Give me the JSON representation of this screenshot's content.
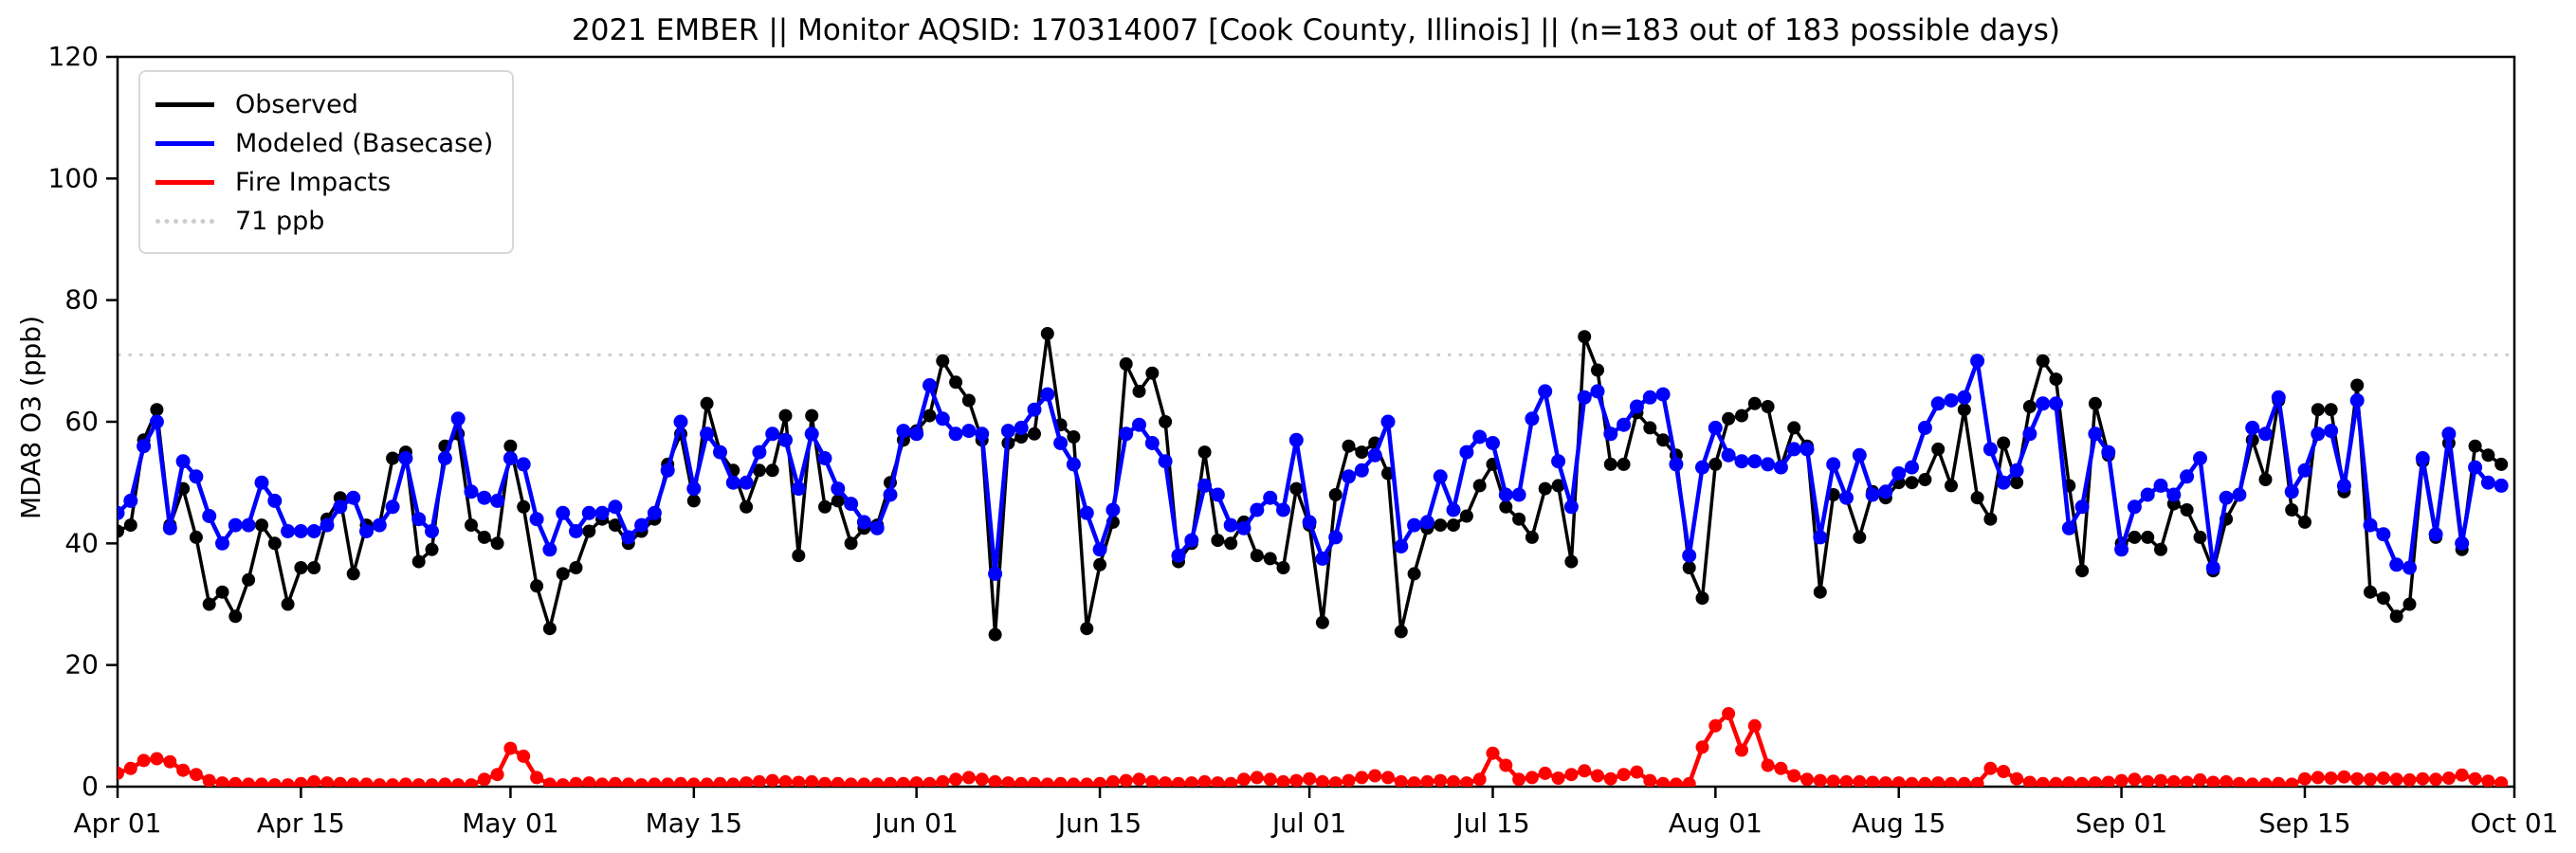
{
  "figure": {
    "background": "#ffffff"
  },
  "chart_data": {
    "type": "line",
    "title": "2021 EMBER || Monitor AQSID: 170314007 [Cook County, Illinois] || (n=183 out of 183 possible days)",
    "xlabel": "",
    "ylabel": "MDA8 O3 (ppb)",
    "ylim": [
      0,
      120
    ],
    "yticks": [
      0,
      20,
      40,
      60,
      80,
      100,
      120
    ],
    "x_span_days": 183,
    "x_start_date": "Apr 01",
    "x_end_date": "Oct 01",
    "grid": "off",
    "legend_position": "upper-left",
    "xticks": [
      {
        "label": "Apr 01",
        "day": 0
      },
      {
        "label": "Apr 15",
        "day": 14
      },
      {
        "label": "May 01",
        "day": 30
      },
      {
        "label": "May 15",
        "day": 44
      },
      {
        "label": "Jun 01",
        "day": 61
      },
      {
        "label": "Jun 15",
        "day": 75
      },
      {
        "label": "Jul 01",
        "day": 91
      },
      {
        "label": "Jul 15",
        "day": 105
      },
      {
        "label": "Aug 01",
        "day": 122
      },
      {
        "label": "Aug 15",
        "day": 136
      },
      {
        "label": "Sep 01",
        "day": 153
      },
      {
        "label": "Sep 15",
        "day": 167
      },
      {
        "label": "Oct 01",
        "day": 183
      }
    ],
    "threshold": {
      "value": 71,
      "label": "71 ppb",
      "color": "#cdcdcd"
    },
    "legend": [
      {
        "label": "Observed",
        "color": "#000000",
        "style": "solid"
      },
      {
        "label": "Modeled (Basecase)",
        "color": "#0000ff",
        "style": "solid"
      },
      {
        "label": "Fire Impacts",
        "color": "#ff0000",
        "style": "solid"
      },
      {
        "label": "71 ppb",
        "color": "#cdcdcd",
        "style": "dotted"
      }
    ],
    "series": [
      {
        "name": "Observed",
        "color": "#000000",
        "line_width": 3.5,
        "marker_radius": 7,
        "values": [
          42,
          43,
          57,
          62,
          43,
          49,
          41,
          30,
          32,
          28,
          34,
          43,
          40,
          30,
          36,
          36,
          44,
          47.5,
          35,
          43,
          43,
          54,
          55,
          37,
          39,
          56,
          58,
          43,
          41,
          40,
          56,
          46,
          33,
          26,
          35,
          36,
          42,
          44,
          43,
          40,
          42,
          44,
          53,
          58,
          47,
          63,
          55,
          52,
          46,
          52,
          52,
          61,
          38,
          61,
          46,
          47,
          40,
          42.5,
          43,
          50,
          57,
          58.5,
          61,
          70,
          66.5,
          63.5,
          57,
          25,
          56.5,
          57.5,
          58,
          74.5,
          59.5,
          57.5,
          26,
          36.5,
          43.5,
          69.5,
          65,
          68,
          60,
          37,
          40,
          55,
          40.5,
          40,
          43.5,
          38,
          37.5,
          36,
          49,
          43,
          27,
          48,
          56,
          55,
          56.5,
          51.5,
          25.5,
          35,
          42.5,
          43,
          43,
          44.5,
          49.5,
          53,
          46,
          44,
          41,
          49,
          49.5,
          37,
          74,
          68.5,
          53,
          53,
          61.5,
          59,
          57,
          54.5,
          36,
          31,
          53,
          60.5,
          61,
          63,
          62.5,
          52.5,
          59,
          56,
          32,
          48,
          47.5,
          41,
          48.5,
          47.5,
          50,
          50,
          50.5,
          55.5,
          49.5,
          62,
          47.5,
          44,
          56.5,
          50,
          62.5,
          70,
          67,
          49.5,
          35.5,
          63,
          54.5,
          40,
          41,
          41,
          39,
          46.5,
          45.5,
          41,
          35.5,
          44,
          48,
          57,
          50.5,
          63.5,
          45.5,
          43.5,
          62,
          62,
          48.5,
          66,
          32,
          31,
          28,
          30,
          53.5,
          41,
          56.5,
          39,
          56,
          54.5,
          53
        ]
      },
      {
        "name": "Modeled (Basecase)",
        "color": "#0000ff",
        "line_width": 4.5,
        "marker_radius": 7.5,
        "values": [
          45,
          47,
          56,
          60,
          42.5,
          53.5,
          51,
          44.5,
          40,
          43,
          43,
          50,
          47,
          42,
          42,
          42,
          43,
          46,
          47.5,
          42,
          43,
          46,
          54,
          44,
          42,
          54,
          60.5,
          48.5,
          47.5,
          47,
          54,
          53,
          44,
          39,
          45,
          42,
          45,
          45,
          46,
          41,
          43,
          45,
          52,
          60,
          49,
          58,
          55,
          50,
          50,
          55,
          58,
          57,
          49,
          58,
          54,
          49,
          46.5,
          43.5,
          42.5,
          48,
          58.5,
          58,
          66,
          60.5,
          58,
          58.5,
          58,
          35,
          58.5,
          59,
          62,
          64.5,
          56.5,
          53,
          45,
          39,
          45.5,
          58,
          59.5,
          56.5,
          53.5,
          38,
          40.5,
          49.5,
          48,
          43,
          42.5,
          45.5,
          47.5,
          45.5,
          57,
          43.5,
          37.5,
          41,
          51,
          52,
          54.5,
          60,
          39.5,
          43,
          43.5,
          51,
          45.5,
          55,
          57.5,
          56.5,
          48,
          48,
          60.5,
          65,
          53.5,
          46,
          64,
          65,
          58,
          59.5,
          62.5,
          64,
          64.5,
          53,
          38,
          52.5,
          59,
          54.5,
          53.5,
          53.5,
          53,
          52.5,
          55.5,
          55.5,
          41,
          53,
          47.5,
          54.5,
          48,
          48.5,
          51.5,
          52.5,
          59,
          63,
          63.5,
          64,
          70,
          55.5,
          50,
          52,
          58,
          63,
          63,
          42.5,
          46,
          58,
          55,
          39,
          46,
          48,
          49.5,
          48,
          51,
          54,
          36,
          47.5,
          48,
          59,
          58,
          64,
          48.5,
          52,
          58,
          58.5,
          49.5,
          63.5,
          43,
          41.5,
          36.5,
          36,
          54,
          41.5,
          58,
          40,
          52.5,
          50,
          49.5
        ]
      },
      {
        "name": "Fire Impacts",
        "color": "#ff0000",
        "line_width": 4.5,
        "marker_radius": 7,
        "values": [
          2.2,
          3,
          4.3,
          4.6,
          4.1,
          2.7,
          2,
          1,
          0.6,
          0.5,
          0.4,
          0.4,
          0.3,
          0.3,
          0.5,
          0.8,
          0.6,
          0.5,
          0.4,
          0.4,
          0.3,
          0.3,
          0.4,
          0.3,
          0.3,
          0.4,
          0.3,
          0.3,
          1.2,
          2,
          6.3,
          5,
          1.5,
          0.4,
          0.3,
          0.5,
          0.6,
          0.4,
          0.5,
          0.4,
          0.3,
          0.4,
          0.4,
          0.5,
          0.4,
          0.4,
          0.5,
          0.4,
          0.6,
          0.8,
          1,
          0.8,
          0.7,
          0.8,
          0.5,
          0.5,
          0.4,
          0.4,
          0.4,
          0.5,
          0.5,
          0.6,
          0.5,
          0.8,
          1.2,
          1.5,
          1.2,
          0.8,
          0.6,
          0.5,
          0.5,
          0.4,
          0.5,
          0.4,
          0.4,
          0.5,
          0.8,
          1,
          1.2,
          0.8,
          0.6,
          0.5,
          0.6,
          0.8,
          0.6,
          0.5,
          1.2,
          1.5,
          1.2,
          0.8,
          1,
          1.3,
          0.8,
          0.6,
          1,
          1.5,
          1.8,
          1.5,
          0.8,
          0.6,
          0.8,
          1,
          0.8,
          0.6,
          1.2,
          5.5,
          3.5,
          1.2,
          1.5,
          2.2,
          1.4,
          2,
          2.6,
          1.8,
          1.3,
          2,
          2.4,
          1,
          0.5,
          0.4,
          0.5,
          6.5,
          10,
          12,
          6,
          10,
          3.5,
          3,
          1.8,
          1.2,
          1,
          0.9,
          0.8,
          0.8,
          0.7,
          0.6,
          0.6,
          0.5,
          0.5,
          0.6,
          0.5,
          0.5,
          0.5,
          3,
          2.5,
          1.3,
          0.7,
          0.5,
          0.5,
          0.6,
          0.5,
          0.6,
          0.7,
          1,
          1.2,
          0.8,
          1,
          0.8,
          0.7,
          1.1,
          0.7,
          0.8,
          0.5,
          0.4,
          0.4,
          0.5,
          0.4,
          1.3,
          1.5,
          1.4,
          1.6,
          1.3,
          1.2,
          1.4,
          1.2,
          1.1,
          1.3,
          1.2,
          1.4,
          1.9,
          1.3,
          0.9,
          0.6
        ]
      }
    ]
  }
}
